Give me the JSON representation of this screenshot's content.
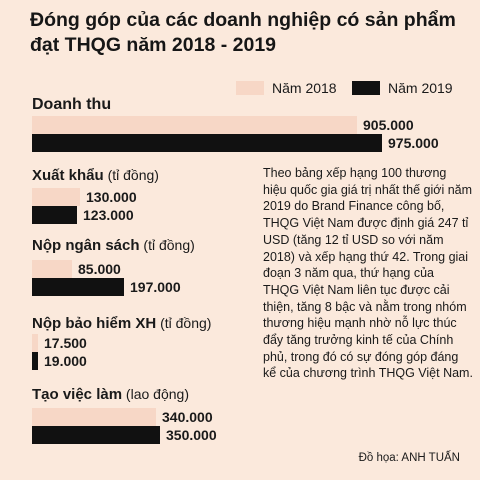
{
  "title": "Đóng góp của các doanh nghiệp có sản phẩm đạt THQG năm 2018 - 2019",
  "legend": {
    "y2018": "Năm 2018",
    "y2019": "Năm 2019"
  },
  "colors": {
    "y2018": "#f7d7c6",
    "y2019": "#111111",
    "background": "#fbe9dc"
  },
  "chart_data": {
    "type": "bar",
    "orientation": "horizontal",
    "title": "Đóng góp của các doanh nghiệp có sản phẩm đạt THQG năm 2018 - 2019",
    "legend_position": "top-right",
    "grid": false,
    "series": [
      {
        "name": "Năm 2018"
      },
      {
        "name": "Năm 2019"
      }
    ],
    "groups": [
      {
        "label": "Doanh thu",
        "unit": "",
        "v2018": 905000,
        "v2019": 975000,
        "t2018": "905.000",
        "t2019": "975.000"
      },
      {
        "label": "Xuất khẩu",
        "unit": "(tỉ đồng)",
        "v2018": 130000,
        "v2019": 123000,
        "t2018": "130.000",
        "t2019": "123.000"
      },
      {
        "label": "Nộp ngân sách",
        "unit": "(tỉ đồng)",
        "v2018": 85000,
        "v2019": 197000,
        "t2018": "85.000",
        "t2019": "197.000"
      },
      {
        "label": "Nộp bảo hiểm XH",
        "unit": "(tỉ đồng)",
        "v2018": 17500,
        "v2019": 19000,
        "t2018": "17.500",
        "t2019": "19.000"
      },
      {
        "label": "Tạo việc làm",
        "unit": "(lao động)",
        "v2018": 340000,
        "v2019": 350000,
        "t2018": "340.000",
        "t2019": "350.000"
      }
    ]
  },
  "note": "Theo bảng xếp hạng 100 thương hiệu quốc gia giá trị nhất thế giới năm 2019 do Brand Finance công bố, THQG Việt Nam được định giá 247 tỉ USD (tăng 12 tỉ USD so với năm 2018) và xếp hạng thứ 42. Trong giai đoạn 3 năm qua, thứ hạng của THQG Việt Nam liên tục được cải thiện, tăng 8 bậc và nằm trong nhóm thương hiệu mạnh nhờ nỗ lực thúc đẩy tăng trưởng kinh tế của Chính phủ, trong đó có sự đóng góp đáng kể của chương trình THQG Việt Nam.",
  "credit": "Đồ họa: ANH TUẤN"
}
